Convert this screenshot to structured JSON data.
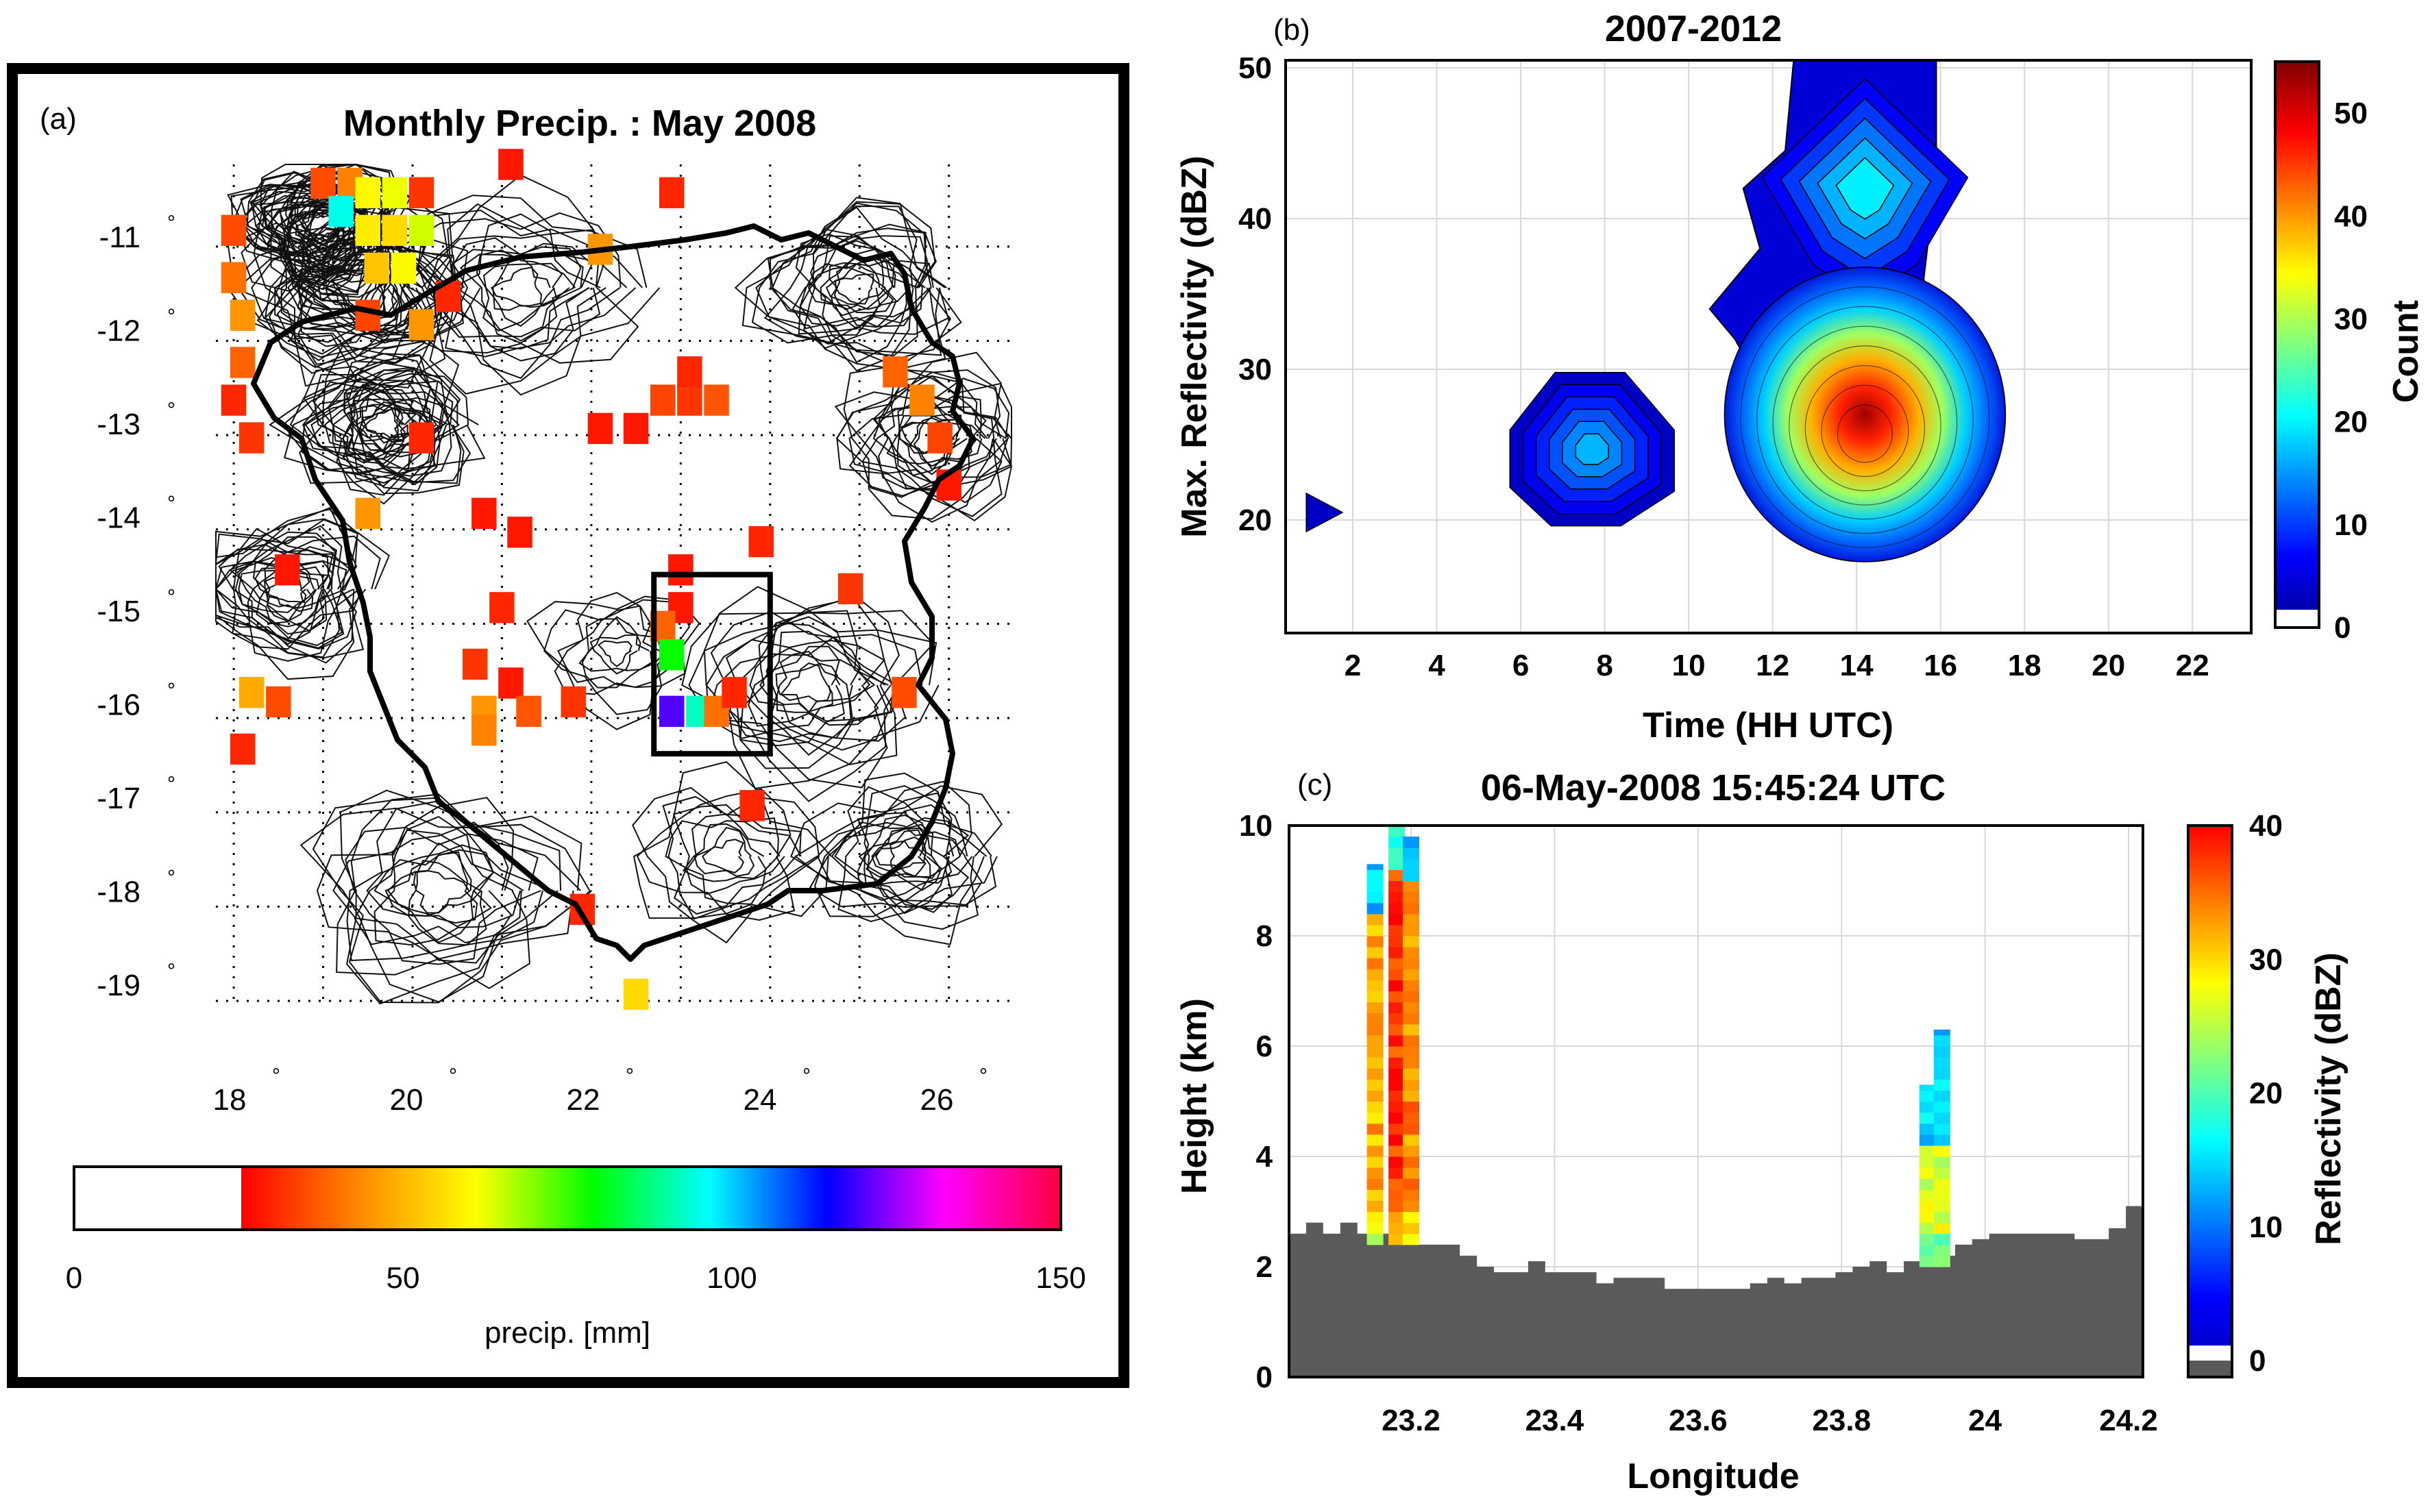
{
  "chart_data": [
    {
      "panel": "(a)",
      "type": "heatmap",
      "title": "Monthly Precip. : May 2008",
      "lat_ticks": [
        "-11",
        "-12",
        "-13",
        "-14",
        "-15",
        "-16",
        "-17",
        "-18",
        "-19"
      ],
      "lon_ticks": [
        "18",
        "20",
        "22",
        "24",
        "26"
      ],
      "degree_mark": "°",
      "xlim": [
        17.9,
        26.8
      ],
      "ylim": [
        -19.0,
        -10.1
      ],
      "highlight_box": {
        "lon": [
          22.8,
          24.1
        ],
        "lat": [
          -16.35,
          -14.45
        ]
      },
      "colorbar": {
        "label": "precip. [mm]",
        "ticks": [
          "0",
          "50",
          "100",
          "150"
        ],
        "range": [
          0,
          150
        ],
        "white_below": 25,
        "colors": [
          "#ff0000",
          "#ff8800",
          "#ffff00",
          "#00ff00",
          "#00ffff",
          "#0000ff",
          "#ff00ff",
          "#ff0040"
        ]
      },
      "cells": [
        {
          "lon": 18.1,
          "lat": -10.8,
          "mm": 35
        },
        {
          "lon": 18.1,
          "lat": -11.3,
          "mm": 40
        },
        {
          "lon": 18.2,
          "lat": -11.7,
          "mm": 45
        },
        {
          "lon": 18.2,
          "lat": -12.2,
          "mm": 38
        },
        {
          "lon": 18.1,
          "lat": -12.6,
          "mm": 30
        },
        {
          "lon": 18.3,
          "lat": -13.0,
          "mm": 32
        },
        {
          "lon": 19.1,
          "lat": -10.3,
          "mm": 35
        },
        {
          "lon": 19.4,
          "lat": -10.3,
          "mm": 42
        },
        {
          "lon": 19.3,
          "lat": -10.6,
          "mm": 95
        },
        {
          "lon": 19.6,
          "lat": -10.4,
          "mm": 60
        },
        {
          "lon": 19.9,
          "lat": -10.4,
          "mm": 62
        },
        {
          "lon": 20.2,
          "lat": -10.4,
          "mm": 32
        },
        {
          "lon": 19.6,
          "lat": -10.8,
          "mm": 58
        },
        {
          "lon": 19.9,
          "lat": -10.8,
          "mm": 55
        },
        {
          "lon": 20.2,
          "lat": -10.8,
          "mm": 64
        },
        {
          "lon": 19.7,
          "lat": -11.2,
          "mm": 52
        },
        {
          "lon": 20.0,
          "lat": -11.2,
          "mm": 60
        },
        {
          "lon": 20.5,
          "lat": -11.5,
          "mm": 30
        },
        {
          "lon": 20.2,
          "lat": -11.8,
          "mm": 45
        },
        {
          "lon": 19.6,
          "lat": -11.7,
          "mm": 34
        },
        {
          "lon": 21.2,
          "lat": -10.1,
          "mm": 28
        },
        {
          "lon": 23.0,
          "lat": -10.4,
          "mm": 30
        },
        {
          "lon": 22.2,
          "lat": -11.0,
          "mm": 45
        },
        {
          "lon": 19.6,
          "lat": -13.8,
          "mm": 45
        },
        {
          "lon": 20.2,
          "lat": -13.0,
          "mm": 30
        },
        {
          "lon": 20.9,
          "lat": -13.8,
          "mm": 28
        },
        {
          "lon": 21.1,
          "lat": -14.8,
          "mm": 30
        },
        {
          "lon": 20.8,
          "lat": -15.4,
          "mm": 32
        },
        {
          "lon": 20.9,
          "lat": -15.9,
          "mm": 45
        },
        {
          "lon": 21.2,
          "lat": -15.6,
          "mm": 28
        },
        {
          "lon": 21.4,
          "lat": -15.9,
          "mm": 36
        },
        {
          "lon": 20.9,
          "lat": -16.1,
          "mm": 42
        },
        {
          "lon": 18.3,
          "lat": -15.7,
          "mm": 48
        },
        {
          "lon": 18.6,
          "lat": -15.8,
          "mm": 35
        },
        {
          "lon": 18.2,
          "lat": -16.3,
          "mm": 30
        },
        {
          "lon": 18.7,
          "lat": -14.4,
          "mm": 28
        },
        {
          "lon": 22.9,
          "lat": -12.6,
          "mm": 34
        },
        {
          "lon": 23.2,
          "lat": -12.6,
          "mm": 32
        },
        {
          "lon": 23.5,
          "lat": -12.6,
          "mm": 36
        },
        {
          "lon": 23.2,
          "lat": -12.3,
          "mm": 30
        },
        {
          "lon": 22.6,
          "lat": -12.9,
          "mm": 28
        },
        {
          "lon": 22.2,
          "lat": -12.9,
          "mm": 28
        },
        {
          "lon": 23.1,
          "lat": -14.4,
          "mm": 28
        },
        {
          "lon": 23.1,
          "lat": -14.8,
          "mm": 28
        },
        {
          "lon": 22.9,
          "lat": -15.0,
          "mm": 38
        },
        {
          "lon": 23.0,
          "lat": -15.3,
          "mm": 78
        },
        {
          "lon": 23.0,
          "lat": -15.9,
          "mm": 120
        },
        {
          "lon": 23.3,
          "lat": -15.9,
          "mm": 92
        },
        {
          "lon": 23.5,
          "lat": -15.9,
          "mm": 40
        },
        {
          "lon": 23.7,
          "lat": -15.7,
          "mm": 30
        },
        {
          "lon": 24.0,
          "lat": -14.1,
          "mm": 30
        },
        {
          "lon": 23.9,
          "lat": -16.9,
          "mm": 30
        },
        {
          "lon": 25.5,
          "lat": -12.3,
          "mm": 38
        },
        {
          "lon": 25.8,
          "lat": -12.6,
          "mm": 42
        },
        {
          "lon": 26.0,
          "lat": -13.0,
          "mm": 34
        },
        {
          "lon": 26.1,
          "lat": -13.5,
          "mm": 28
        },
        {
          "lon": 25.0,
          "lat": -14.6,
          "mm": 32
        },
        {
          "lon": 25.6,
          "lat": -15.7,
          "mm": 35
        },
        {
          "lon": 22.0,
          "lat": -18.0,
          "mm": 30
        },
        {
          "lon": 22.6,
          "lat": -18.9,
          "mm": 55
        },
        {
          "lon": 21.3,
          "lat": -14.0,
          "mm": 28
        },
        {
          "lon": 21.9,
          "lat": -15.8,
          "mm": 32
        }
      ]
    },
    {
      "panel": "(b)",
      "type": "heatmap",
      "title": "2007-2012",
      "xlabel": "Time (HH UTC)",
      "ylabel": "Max. Reflectivity (dBZ)",
      "xlim": [
        0.4,
        23.4
      ],
      "ylim": [
        12.5,
        50.5
      ],
      "xticks": [
        "2",
        "4",
        "6",
        "8",
        "10",
        "12",
        "14",
        "16",
        "18",
        "20",
        "22"
      ],
      "yticks": [
        "20",
        "30",
        "40",
        "50"
      ],
      "colorbar": {
        "label": "Count",
        "ticks": [
          "0",
          "10",
          "20",
          "30",
          "40",
          "50"
        ],
        "range": [
          0,
          55
        ],
        "colors": [
          "#00008f",
          "#0000ff",
          "#0080ff",
          "#00ffff",
          "#80ff80",
          "#ffff00",
          "#ff8000",
          "#ff0000",
          "#800000"
        ]
      },
      "regions": [
        {
          "t": 1.3,
          "dbz": 20.5,
          "peak": 2,
          "shape": "point"
        },
        {
          "t": 7.7,
          "dbz": 23.5,
          "peak": 16
        },
        {
          "t": 14.2,
          "dbz": 27,
          "peak": 55
        },
        {
          "t": 14.2,
          "dbz": 42,
          "peak": 18
        }
      ]
    },
    {
      "panel": "(c)",
      "type": "heatmap",
      "title": "06-May-2008 15:45:24 UTC",
      "xlabel": "Longitude",
      "ylabel": "Height (km)",
      "xlim": [
        23.03,
        24.22
      ],
      "ylim": [
        0,
        10
      ],
      "xticks": [
        "23.2",
        "23.4",
        "23.6",
        "23.8",
        "24",
        "24.2"
      ],
      "yticks": [
        "0",
        "2",
        "4",
        "6",
        "8",
        "10"
      ],
      "colorbar": {
        "label": "Reflectivity (dBZ)",
        "ticks": [
          "0",
          "10",
          "20",
          "30",
          "40"
        ],
        "range": [
          0,
          40
        ],
        "colors": [
          "#0000b0",
          "#0000ff",
          "#0080ff",
          "#00ffff",
          "#80ff80",
          "#ffff00",
          "#ff8000",
          "#ff0000"
        ]
      },
      "terrain_km": [
        2.6,
        2.8,
        2.6,
        2.8,
        2.6,
        2.6,
        2.4,
        2.4,
        2.4,
        2.4,
        2.2,
        2.0,
        1.9,
        1.9,
        2.1,
        1.9,
        1.9,
        1.9,
        1.7,
        1.8,
        1.8,
        1.8,
        1.6,
        1.6,
        1.6,
        1.6,
        1.6,
        1.7,
        1.8,
        1.7,
        1.8,
        1.8,
        1.9,
        2.0,
        2.1,
        1.9,
        2.1,
        2.1,
        2.2,
        2.4,
        2.5,
        2.6,
        2.6,
        2.6,
        2.6,
        2.6,
        2.5,
        2.5,
        2.7,
        3.1
      ],
      "columns": [
        {
          "lon": 23.15,
          "bottom": 2.4,
          "top": 9.3,
          "dbz": 32
        },
        {
          "lon": 23.18,
          "bottom": 2.4,
          "top": 10.0,
          "dbz": 38
        },
        {
          "lon": 23.2,
          "bottom": 2.4,
          "top": 9.8,
          "dbz": 34
        },
        {
          "lon": 23.92,
          "bottom": 2.0,
          "top": 5.3,
          "dbz": 26
        },
        {
          "lon": 23.94,
          "bottom": 2.0,
          "top": 6.3,
          "dbz": 27
        }
      ]
    }
  ],
  "panels": {
    "a": "(a)",
    "b": "(b)",
    "c": "(c)"
  }
}
